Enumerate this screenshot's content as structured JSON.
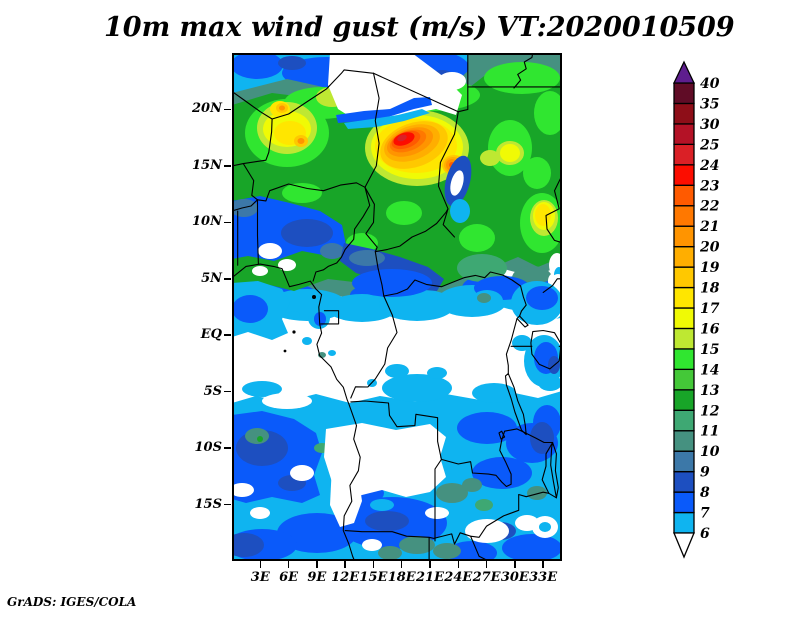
{
  "title": "10m max wind gust (m/s) VT:2020010509",
  "footer": "GrADS: IGES/COLA",
  "chart_data": {
    "type": "heatmap",
    "subtype": "filled-contour-geographic-map",
    "variable": "10m maximum wind gust",
    "units": "m/s",
    "valid_time": "2020010509",
    "title": "10m max wind gust (m/s) VT:2020010509",
    "region": {
      "lon_min": "0E",
      "lon_max": "35E",
      "lat_min": "20S",
      "lat_max": "25N"
    },
    "x_axis": {
      "ticks": [
        {
          "label": "3E",
          "lon": 3
        },
        {
          "label": "6E",
          "lon": 6
        },
        {
          "label": "9E",
          "lon": 9
        },
        {
          "label": "12E",
          "lon": 12
        },
        {
          "label": "15E",
          "lon": 15
        },
        {
          "label": "18E",
          "lon": 18
        },
        {
          "label": "21E",
          "lon": 21
        },
        {
          "label": "24E",
          "lon": 24
        },
        {
          "label": "27E",
          "lon": 27
        },
        {
          "label": "30E",
          "lon": 30
        },
        {
          "label": "33E",
          "lon": 33
        }
      ]
    },
    "y_axis": {
      "ticks": [
        {
          "label": "20N",
          "lat": 20
        },
        {
          "label": "15N",
          "lat": 15
        },
        {
          "label": "10N",
          "lat": 10
        },
        {
          "label": "5N",
          "lat": 5
        },
        {
          "label": "EQ",
          "lat": 0
        },
        {
          "label": "5S",
          "lat": -5
        },
        {
          "label": "10S",
          "lat": -10
        },
        {
          "label": "15S",
          "lat": -15
        }
      ]
    },
    "colorbar": {
      "levels": [
        "6",
        "7",
        "8",
        "9",
        "10",
        "11",
        "12",
        "13",
        "14",
        "15",
        "16",
        "17",
        "18",
        "19",
        "20",
        "21",
        "22",
        "23",
        "24",
        "25",
        "30",
        "35",
        "40"
      ],
      "colors": [
        "#0FB4F0",
        "#0A5AFA",
        "#1D4FC0",
        "#3C78A8",
        "#459180",
        "#3EA873",
        "#18A528",
        "#44C838",
        "#30E630",
        "#BEE832",
        "#F0FA05",
        "#FFE600",
        "#FFC800",
        "#FFAE00",
        "#FF9400",
        "#FF7800",
        "#FF5A00",
        "#FC0D00",
        "#DA2026",
        "#B41226",
        "#8E0E18",
        "#600C26"
      ],
      "above_color": "#5E1E8E",
      "below_color": "#FFFFFF",
      "border_color": "#000000"
    },
    "features": [
      "Maximum gust core 23-25 m/s centered near 17N 17E over the Chad / Bodele region, elongated WSW-ENE with orange hook extending to ~14N 23E",
      "Secondary small orange maxima (~19-20 m/s) near 20N 5E and 23N 5E over the northwest Sahara",
      "Broad 12-16 m/s green area across the Sahel and Sudan between roughly 8N and 23N, with yellow 16-19 m/s patches",
      "Calm area below 6 m/s (white) over the Gulf of Guinea coast and Congo basin between ~6N and 5S",
      "Widespread 6-9 m/s (blue) over the South Atlantic and southern Africa south of ~5S, with 10-12 m/s teal patches",
      "Blue/white band (6-9 m/s) along the northern map edge 23-25N"
    ],
    "map_overlay": "African coastline, country borders and lakes (Chad, Nasser/Nile, Victoria, Tanganyika, Malawi) drawn in black"
  }
}
